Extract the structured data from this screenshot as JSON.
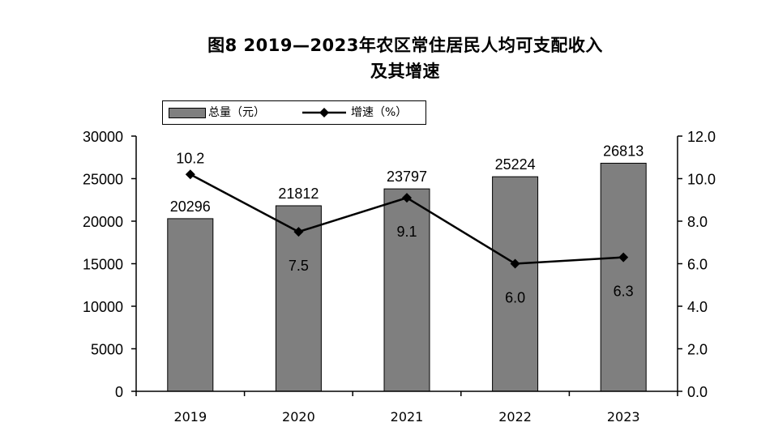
{
  "title_line1": "图8   2019—2023年农区常住居民人均可支配收入",
  "title_line2": "及其增速",
  "legend": {
    "bar_label": "总量（元）",
    "line_label": "增速（%）"
  },
  "colors": {
    "bar_fill": "#7f7f7f",
    "bar_stroke": "#000000",
    "line": "#000000"
  },
  "chart_data": {
    "type": "bar",
    "title": "图8   2019—2023年农区常住居民人均可支配收入及其增速",
    "categories": [
      "2019",
      "2020",
      "2021",
      "2022",
      "2023"
    ],
    "series": [
      {
        "name": "总量（元）",
        "type": "bar",
        "axis": "left",
        "values": [
          20296,
          21812,
          23797,
          25224,
          26813
        ]
      },
      {
        "name": "增速（%）",
        "type": "line",
        "axis": "right",
        "values": [
          10.2,
          7.5,
          9.1,
          6.0,
          6.3
        ]
      }
    ],
    "bar_labels": [
      "20296",
      "21812",
      "23797",
      "25224",
      "26813"
    ],
    "line_labels": [
      "10.2",
      "7.5",
      "9.1",
      "6.0",
      "6.3"
    ],
    "ylim_left": [
      0,
      30000
    ],
    "ylim_right": [
      0,
      12
    ],
    "left_ticks": [
      "0",
      "5000",
      "10000",
      "15000",
      "20000",
      "25000",
      "30000"
    ],
    "right_ticks": [
      "0.0",
      "2.0",
      "4.0",
      "6.0",
      "8.0",
      "10.0",
      "12.0"
    ],
    "grid": false,
    "legend_position": "top-left"
  }
}
